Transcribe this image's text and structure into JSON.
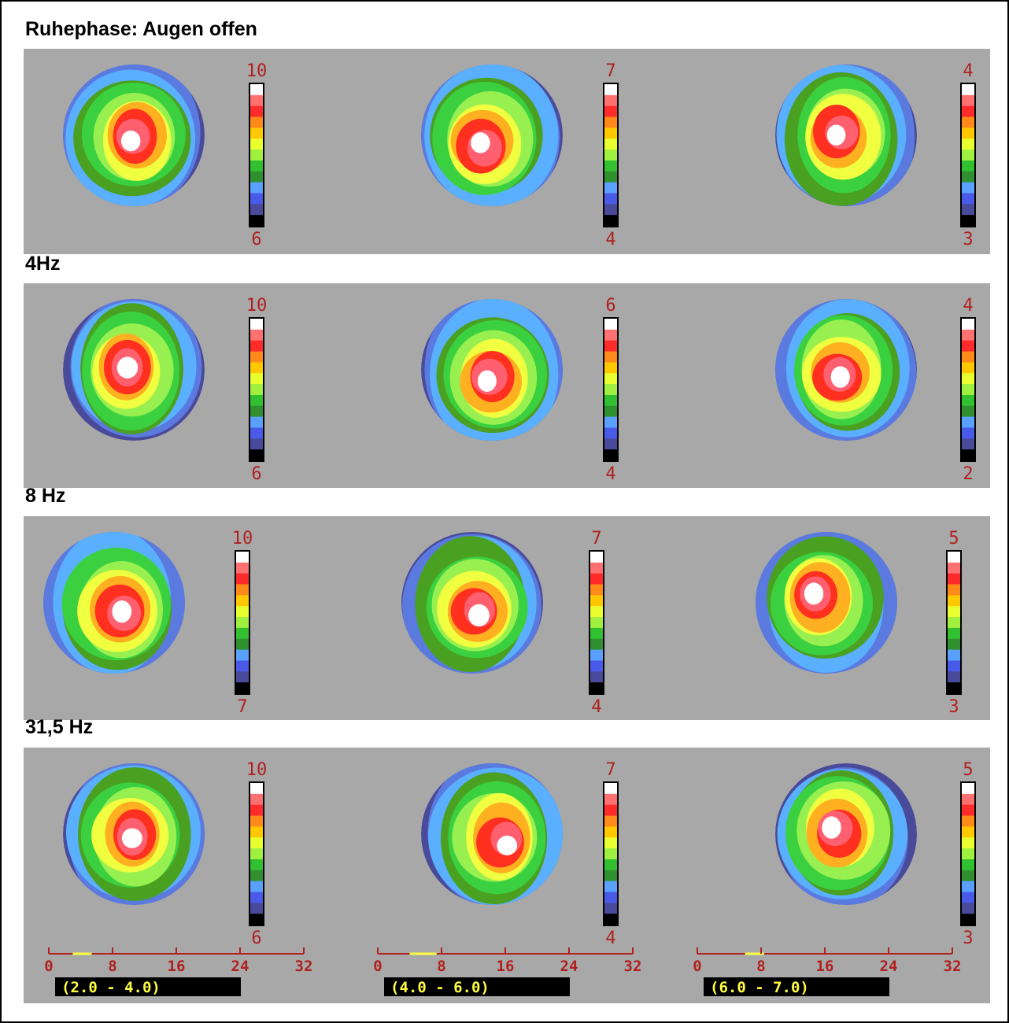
{
  "panels": [
    {
      "title": "Ruhephase: Augen offen",
      "maps": [
        {
          "max": "10",
          "min": "6"
        },
        {
          "max": "7",
          "min": "4"
        },
        {
          "max": "4",
          "min": "3"
        }
      ]
    },
    {
      "title": "4Hz",
      "maps": [
        {
          "max": "10",
          "min": "6"
        },
        {
          "max": "6",
          "min": "4"
        },
        {
          "max": "4",
          "min": "2"
        }
      ]
    },
    {
      "title": "8 Hz",
      "maps": [
        {
          "max": "10",
          "min": "7"
        },
        {
          "max": "7",
          "min": "4"
        },
        {
          "max": "5",
          "min": "3"
        }
      ]
    },
    {
      "title": "31,5 Hz",
      "maps": [
        {
          "max": "10",
          "min": "6"
        },
        {
          "max": "7",
          "min": "4"
        },
        {
          "max": "5",
          "min": "3"
        }
      ]
    }
  ],
  "scales": [
    {
      "ticks": [
        "0",
        "8",
        "16",
        "24",
        "32"
      ],
      "range": "(2.0 - 4.0)"
    },
    {
      "ticks": [
        "0",
        "8",
        "16",
        "24",
        "32"
      ],
      "range": "(4.0 - 6.0)"
    },
    {
      "ticks": [
        "0",
        "8",
        "16",
        "24",
        "32"
      ],
      "range": "(6.0 - 7.0)"
    }
  ]
}
